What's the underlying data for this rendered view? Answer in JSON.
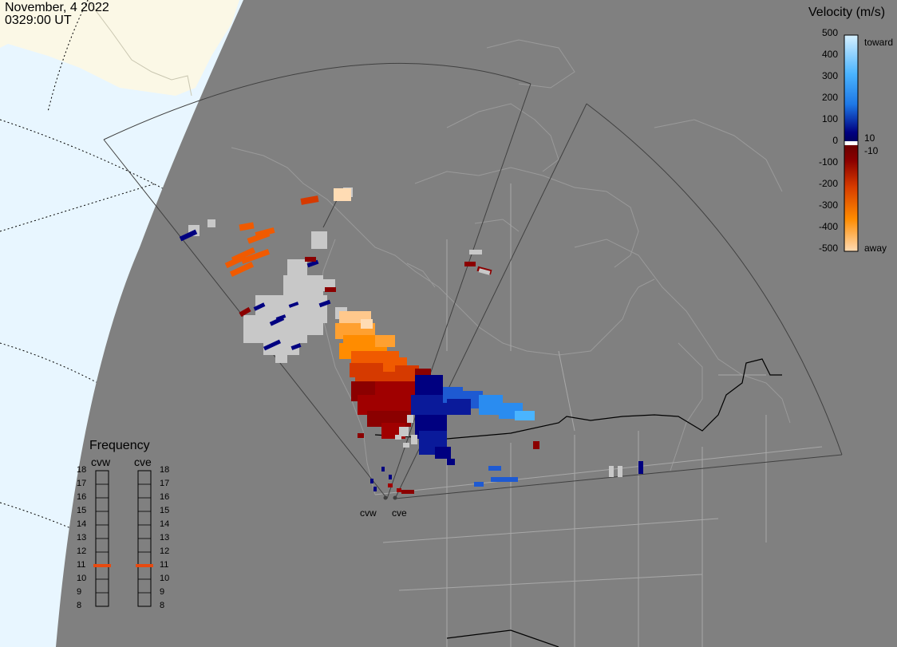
{
  "header": {
    "date": "November, 4 2022",
    "time": "0329:00 UT"
  },
  "velocity_scale": {
    "title": "Velocity (m/s)",
    "ticks": [
      "500",
      "400",
      "300",
      "200",
      "100",
      "0",
      "-100",
      "-200",
      "-300",
      "-400",
      "-500"
    ],
    "toward_label": "toward",
    "away_label": "away",
    "plus_threshold": "10",
    "minus_threshold": "-10",
    "colors": {
      "toward_light": "#d6f0ff",
      "toward_mid": "#1e90ff",
      "toward_dark": "#000080",
      "away_dark": "#8b0000",
      "away_mid": "#ff8c00",
      "away_light": "#ffdcb4",
      "ground_scatter": "#c8c8c8"
    }
  },
  "frequency_panel": {
    "title": "Frequency",
    "columns": [
      {
        "name": "cvw",
        "current_mhz": 11
      },
      {
        "name": "cve",
        "current_mhz": 11
      }
    ],
    "levels": [
      "18",
      "17",
      "16",
      "15",
      "14",
      "13",
      "12",
      "11",
      "10",
      "9",
      "8"
    ],
    "marker_color": "#e84a10"
  },
  "sites": [
    "cvw",
    "cve"
  ],
  "map_colors": {
    "night": "#808080",
    "day_land": "#fbf8e6",
    "day_sea": "#e8f6ff",
    "coast": "#9a9a9a",
    "border": "#000000",
    "fov": "#404040"
  }
}
